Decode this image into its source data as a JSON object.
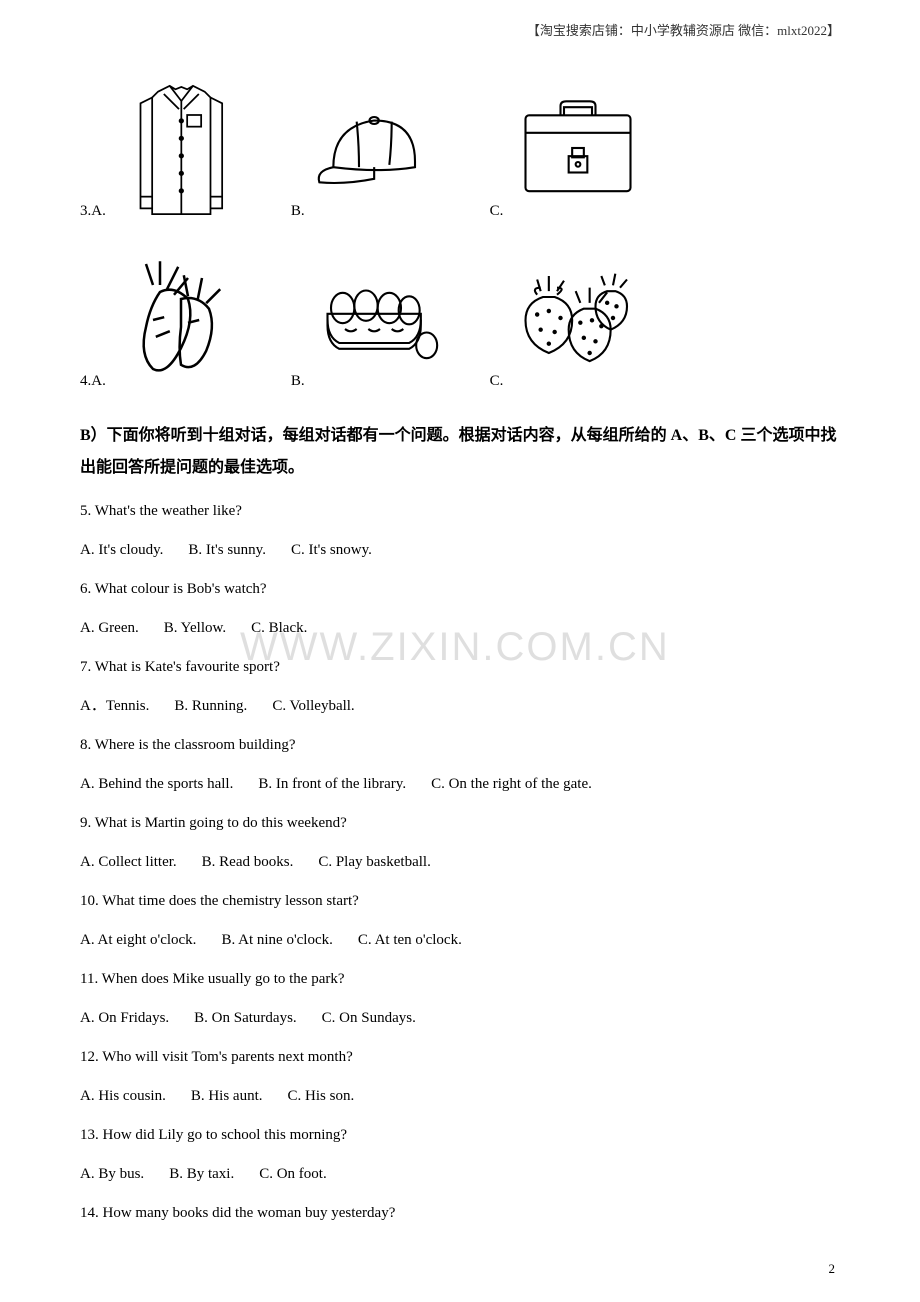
{
  "header": "【淘宝搜索店铺：中小学教辅资源店  微信：mlxt2022】",
  "watermark": "WWW.ZIXIN.COM.CN",
  "page_number": "2",
  "image_questions": [
    {
      "labels": [
        "3.A.",
        "B.",
        "C."
      ],
      "icons": [
        "shirt",
        "cap",
        "briefcase"
      ]
    },
    {
      "labels": [
        "4.A.",
        "B.",
        "C."
      ],
      "icons": [
        "carrots",
        "eggs",
        "strawberries"
      ]
    }
  ],
  "section_b_header": "B）下面你将听到十组对话，每组对话都有一个问题。根据对话内容，从每组所给的 A、B、C 三个选项中找出能回答所提问题的最佳选项。",
  "questions": [
    {
      "q": "5. What's the weather like?",
      "opts": [
        "A. It's cloudy.",
        "B. It's sunny.",
        "C. It's snowy."
      ]
    },
    {
      "q": "6. What colour is Bob's watch?",
      "opts": [
        "A. Green.",
        "B. Yellow.",
        "C. Black."
      ]
    },
    {
      "q": "7. What is Kate's favourite sport?",
      "opts": [
        "A．Tennis.",
        "B. Running.",
        "C. Volleyball."
      ]
    },
    {
      "q": "8. Where is the classroom building?",
      "opts": [
        "A. Behind the sports hall.",
        "B. In front of the library.",
        "C. On the right of the gate."
      ]
    },
    {
      "q": "9. What is Martin going to do this weekend?",
      "opts": [
        "A. Collect litter.",
        "B. Read books.",
        "C. Play basketball."
      ]
    },
    {
      "q": "10. What time does the chemistry lesson start?",
      "opts": [
        "A. At eight o'clock.",
        "B. At nine o'clock.",
        "C. At ten o'clock."
      ]
    },
    {
      "q": "11. When does Mike usually go to the park?",
      "opts": [
        "A. On Fridays.",
        "B. On Saturdays.",
        "C. On Sundays."
      ]
    },
    {
      "q": "12. Who will visit Tom's parents next month?",
      "opts": [
        "A. His cousin.",
        "B. His aunt.",
        "C. His son."
      ]
    },
    {
      "q": "13. How did Lily go to school this morning?",
      "opts": [
        "A. By bus.",
        "B. By taxi.",
        "C. On foot."
      ]
    },
    {
      "q": "14. How many books did the woman buy yesterday?",
      "opts": []
    }
  ]
}
